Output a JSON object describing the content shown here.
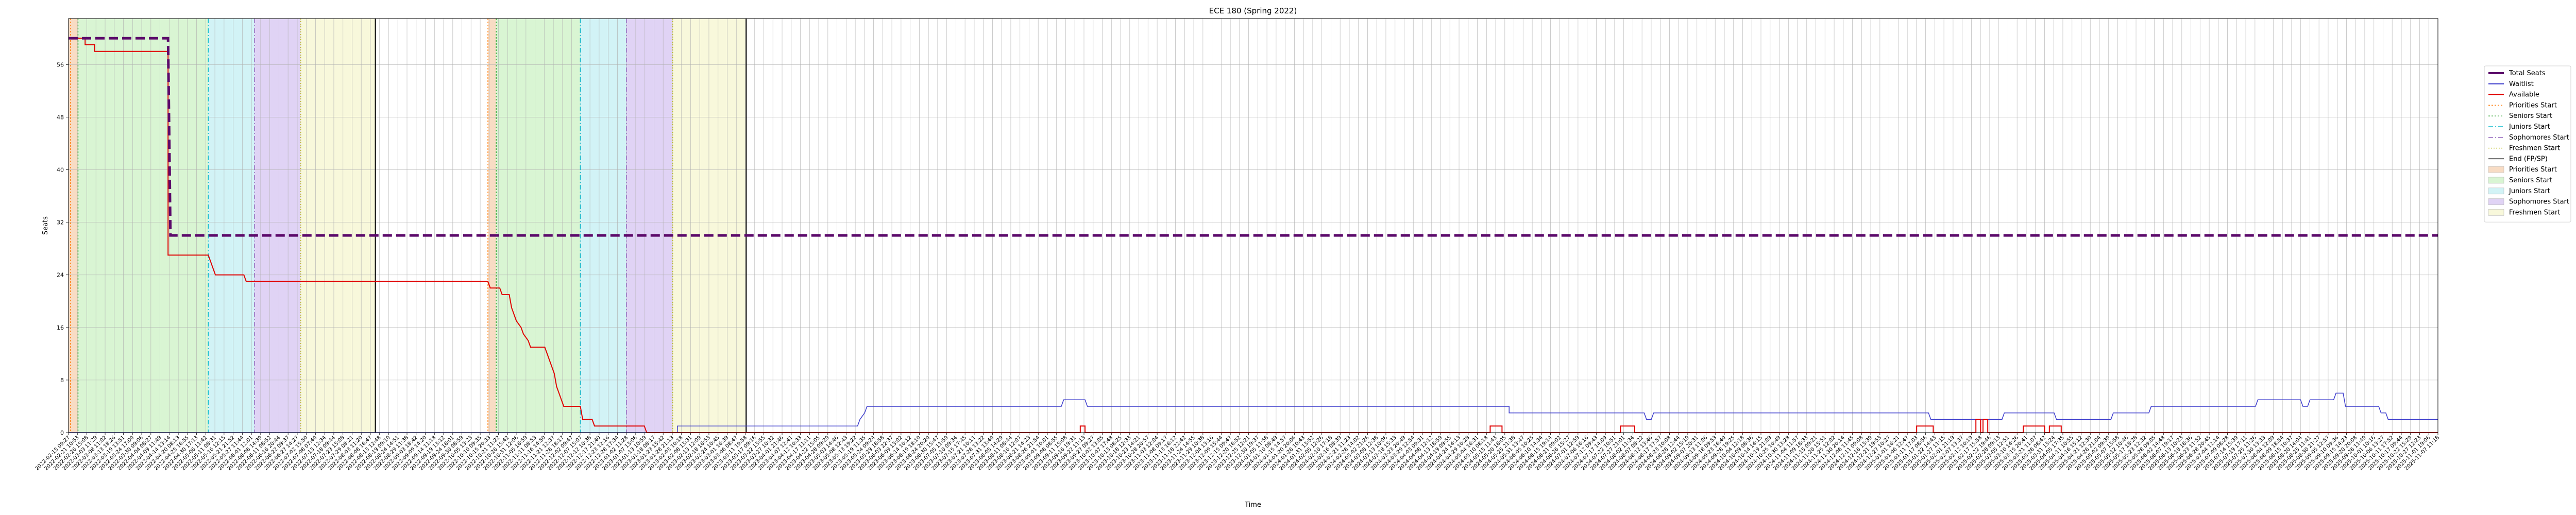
{
  "chart_data": {
    "type": "line",
    "title": "ECE 180 (Spring 2022)",
    "xlabel": "Time",
    "ylabel": "Seats",
    "y_ticks": [
      0,
      8,
      16,
      24,
      32,
      40,
      48,
      56
    ],
    "ylim": [
      0,
      63
    ],
    "xlim": [
      0,
      1000
    ],
    "grid": true,
    "legend_position": "outside-right",
    "x_tick_count": 260,
    "x_tick_labels": [
      "2022-02-15 09:27",
      "2022-02-21 10:53",
      "2022-02-26 15:08",
      "2022-03-03 11:29",
      "2022-03-08 11:02",
      "2022-03-13 18:26",
      "2022-03-19 13:51",
      "2022-03-24 17:00",
      "2022-03-30 09:06",
      "2022-04-04 08:27",
      "2022-04-09 11:49",
      "2022-04-14 13:14",
      "2022-04-20 08:13",
      "2022-04-25 16:55",
      "2022-04-30 17:13",
      "2022-05-06 11:42",
      "2022-05-11 08:31",
      "2022-05-16 12:15",
      "2022-05-21 21:52",
      "2022-05-27 11:44",
      "2022-06-01 12:01",
      "2022-06-06 14:39",
      "2022-06-11 08:52",
      "2022-06-16 20:44",
      "2022-06-22 09:37",
      "2022-06-27 14:27",
      "2022-07-02 15:50",
      "2022-07-08 07:40",
      "2022-07-13 12:34",
      "2022-07-18 09:44",
      "2022-07-23 15:08",
      "2022-07-29 08:21",
      "2022-08-03 11:20",
      "2022-08-08 16:47",
      "2022-08-13 12:48",
      "2022-08-19 09:10",
      "2022-08-24 14:51",
      "2022-08-29 11:38",
      "2022-09-03 18:42",
      "2022-09-09 14:20",
      "2022-09-14 11:18",
      "2022-09-19 13:12",
      "2022-09-24 16:01",
      "2022-09-30 08:59",
      "2022-10-05 13:23",
      "2022-10-10 09:35",
      "2022-10-15 20:33",
      "2022-10-21 11:22",
      "2022-10-26 15:42",
      "2022-10-31 12:06",
      "2022-11-05 16:59",
      "2022-11-11 08:53",
      "2022-11-16 14:50",
      "2022-11-21 12:37",
      "2022-11-26 18:17",
      "2022-12-02 09:47",
      "2022-12-07 15:07",
      "2022-12-12 10:38",
      "2022-12-17 21:40",
      "2022-12-23 12:16",
      "2022-12-28 17:34",
      "2023-01-02 11:28",
      "2023-01-07 13:06",
      "2023-01-13 10:59",
      "2023-01-18 08:17",
      "2023-01-23 15:42",
      "2023-01-28 21:13",
      "2023-02-03 10:18",
      "2023-02-08 13:31",
      "2023-02-13 12:09",
      "2023-02-18 16:53",
      "2023-02-24 10:45",
      "2023-03-01 16:39",
      "2023-03-06 08:47",
      "2023-03-11 19:58",
      "2023-03-17 09:16",
      "2023-03-22 13:55",
      "2023-03-27 10:32",
      "2023-04-01 21:46",
      "2023-04-07 12:41",
      "2023-04-12 10:33",
      "2023-04-17 11:11",
      "2023-04-22 15:05",
      "2023-04-28 09:29",
      "2023-05-03 14:46",
      "2023-05-08 12:43",
      "2023-05-13 19:22",
      "2023-05-19 11:35",
      "2023-05-24 09:24",
      "2023-05-29 16:58",
      "2023-06-03 22:37",
      "2023-06-09 13:02",
      "2023-06-14 10:12",
      "2023-06-19 18:10",
      "2023-06-24 20:20",
      "2023-06-30 15:47",
      "2023-07-05 11:59",
      "2023-07-10 09:34",
      "2023-07-15 17:45",
      "2023-07-21 10:11",
      "2023-07-26 13:22",
      "2023-07-31 13:40",
      "2023-08-05 14:29",
      "2023-08-11 08:44",
      "2023-08-16 12:07",
      "2023-08-21 14:23",
      "2023-08-26 21:54",
      "2023-09-01 10:01",
      "2023-09-06 08:55",
      "2023-09-11 15:08",
      "2023-09-16 19:31",
      "2023-09-22 11:13",
      "2023-09-27 09:27",
      "2023-10-02 13:05",
      "2023-10-07 17:48",
      "2023-10-13 08:25",
      "2023-10-18 12:33",
      "2023-10-23 14:21",
      "2023-10-28 20:57",
      "2023-11-03 12:04",
      "2023-11-08 09:17",
      "2023-11-13 16:12",
      "2023-11-18 22:42",
      "2023-11-24 14:55",
      "2023-11-29 10:38",
      "2023-12-04 13:16",
      "2023-12-09 15:44",
      "2023-12-15 09:47",
      "2023-12-20 16:52",
      "2023-12-25 12:21",
      "2023-12-30 19:37",
      "2024-01-05 11:58",
      "2024-01-10 08:49",
      "2024-01-15 14:57",
      "2024-01-20 20:06",
      "2024-01-26 10:43",
      "2024-01-31 13:52",
      "2024-02-05 12:26",
      "2024-02-10 17:18",
      "2024-02-16 08:39",
      "2024-02-21 11:23",
      "2024-02-26 14:02",
      "2024-03-02 21:26",
      "2024-03-08 12:38",
      "2024-03-13 10:06",
      "2024-03-18 15:33",
      "2024-03-23 20:49",
      "2024-03-29 12:54",
      "2024-04-03 09:31",
      "2024-04-08 12:12",
      "2024-04-13 18:59",
      "2024-04-19 09:55",
      "2024-04-24 14:13",
      "2024-04-29 10:28",
      "2024-05-04 16:31",
      "2024-05-10 08:18",
      "2024-05-15 11:43",
      "2024-05-20 16:05",
      "2024-05-25 21:38",
      "2024-05-31 13:47",
      "2024-06-05 10:25",
      "2024-06-10 14:34",
      "2024-06-15 19:14",
      "2024-06-21 09:02",
      "2024-06-26 15:27",
      "2024-07-01 12:59",
      "2024-07-06 16:16",
      "2024-07-12 09:43",
      "2024-07-17 14:09",
      "2024-07-22 10:51",
      "2024-07-27 21:01",
      "2024-08-02 11:34",
      "2024-08-07 08:22",
      "2024-08-12 13:46",
      "2024-08-17 17:57",
      "2024-08-23 10:08",
      "2024-08-28 12:44",
      "2024-09-02 15:19",
      "2024-09-07 20:31",
      "2024-09-13 11:06",
      "2024-09-18 09:53",
      "2024-09-23 16:40",
      "2024-09-28 19:25",
      "2024-10-04 12:18",
      "2024-10-09 08:36",
      "2024-10-14 14:15",
      "2024-10-19 21:09",
      "2024-10-25 10:49",
      "2024-10-30 13:28",
      "2024-11-04 11:57",
      "2024-11-09 18:33",
      "2024-11-15 09:21",
      "2024-11-20 15:51",
      "2024-11-25 12:02",
      "2024-11-30 20:14",
      "2024-12-06 11:45",
      "2024-12-11 09:08",
      "2024-12-16 13:39",
      "2024-12-21 19:53",
      "2024-12-27 10:27",
      "2025-01-01 16:21",
      "2025-01-06 12:47",
      "2025-01-11 17:03",
      "2025-01-17 08:56",
      "2025-01-22 14:43",
      "2025-01-27 11:15",
      "2025-02-01 21:19",
      "2025-02-07 13:37",
      "2025-02-12 10:19",
      "2025-02-17 15:58",
      "2025-02-22 19:46",
      "2025-02-28 09:13",
      "2025-03-05 12:51",
      "2025-03-10 14:26",
      "2025-03-15 20:41",
      "2025-03-21 11:07",
      "2025-03-26 08:42",
      "2025-03-31 13:24",
      "2025-04-05 17:35",
      "2025-04-11 10:55",
      "2025-04-16 15:12",
      "2025-04-21 12:30",
      "2025-04-26 21:04",
      "2025-05-02 09:39",
      "2025-05-07 13:58",
      "2025-05-12 10:46",
      "2025-05-17 18:28",
      "2025-05-23 12:32",
      "2025-05-28 09:05",
      "2025-06-02 14:48",
      "2025-06-07 19:17",
      "2025-06-13 10:23",
      "2025-06-18 16:36",
      "2025-06-23 11:52",
      "2025-06-28 20:45",
      "2025-07-04 12:14",
      "2025-07-09 08:28",
      "2025-07-14 15:39",
      "2025-07-19 17:11",
      "2025-07-25 11:26",
      "2025-07-30 13:33",
      "2025-08-04 12:09",
      "2025-08-09 18:54",
      "2025-08-15 10:37",
      "2025-08-20 14:04",
      "2025-08-25 11:41",
      "2025-08-30 21:27",
      "2025-09-05 12:57",
      "2025-09-10 09:36",
      "2025-09-15 14:23",
      "2025-09-20 20:08",
      "2025-09-26 11:49",
      "2025-10-01 10:16",
      "2025-10-06 13:27",
      "2025-10-11 17:52",
      "2025-10-17 09:44",
      "2025-10-22 15:29",
      "2025-10-27 12:23",
      "2025-11-01 19:06",
      "2025-11-07 11:18"
    ],
    "phase_lines": [
      {
        "name": "Priorities Start",
        "x": 0.8,
        "color": "#ff7f0e",
        "dash": "3,3"
      },
      {
        "name": "Seniors Start",
        "x": 4.0,
        "color": "#2ca02c",
        "dash": "3,3"
      },
      {
        "name": "Juniors Start",
        "x": 59.0,
        "color": "#17becf",
        "dash": "9,4,2,4"
      },
      {
        "name": "Sophomores Start",
        "x": 78.5,
        "color": "#9467bd",
        "dash": "9,4,2,4"
      },
      {
        "name": "Freshmen Start",
        "x": 98.0,
        "color": "#bcbd22",
        "dash": "2,3"
      },
      {
        "name": "End (FP/SP)",
        "x": 129.5,
        "color": "#000000",
        "dash": ""
      },
      {
        "name": "Priorities Start",
        "x": 177.0,
        "color": "#ff7f0e",
        "dash": "3,3"
      },
      {
        "name": "Seniors Start",
        "x": 180.5,
        "color": "#2ca02c",
        "dash": "3,3"
      },
      {
        "name": "Juniors Start",
        "x": 216.0,
        "color": "#17becf",
        "dash": "9,4,2,4"
      },
      {
        "name": "Sophomores Start",
        "x": 235.5,
        "color": "#9467bd",
        "dash": "9,4,2,4"
      },
      {
        "name": "Freshmen Start",
        "x": 255.0,
        "color": "#bcbd22",
        "dash": "2,3"
      },
      {
        "name": "End (FP/SP)",
        "x": 286.0,
        "color": "#000000",
        "dash": ""
      }
    ],
    "phase_spans": [
      {
        "name": "Priorities Start",
        "x0": 0.0,
        "x1": 4.0,
        "color": "#f8dcc4"
      },
      {
        "name": "Seniors Start",
        "x0": 4.0,
        "x1": 59.0,
        "color": "#d9f5d3"
      },
      {
        "name": "Juniors Start",
        "x0": 59.0,
        "x1": 78.5,
        "color": "#d2f3f6"
      },
      {
        "name": "Sophomores Start",
        "x0": 78.5,
        "x1": 98.0,
        "color": "#e0d3f5"
      },
      {
        "name": "Freshmen Start",
        "x0": 98.0,
        "x1": 129.5,
        "color": "#f8f8db"
      },
      {
        "name": "Priorities Start",
        "x0": 177.0,
        "x1": 180.5,
        "color": "#f8dcc4"
      },
      {
        "name": "Seniors Start",
        "x0": 180.5,
        "x1": 216.0,
        "color": "#d9f5d3"
      },
      {
        "name": "Juniors Start",
        "x0": 216.0,
        "x1": 235.5,
        "color": "#d2f3f6"
      },
      {
        "name": "Sophomores Start",
        "x0": 235.5,
        "x1": 255.0,
        "color": "#e0d3f5"
      },
      {
        "name": "Freshmen Start",
        "x0": 255.0,
        "x1": 286.0,
        "color": "#f8f8db"
      }
    ],
    "series": [
      {
        "name": "Total Seats",
        "color": "#5c0a6b",
        "width": 5,
        "dash": "18,8",
        "points": [
          [
            0,
            60
          ],
          [
            42,
            60
          ],
          [
            43,
            30
          ],
          [
            1000,
            30
          ]
        ]
      },
      {
        "name": "Waitlist",
        "color": "#3b3bcc",
        "width": 1.5,
        "dash": "",
        "points": [
          [
            0,
            0
          ],
          [
            257,
            0
          ],
          [
            257,
            1
          ],
          [
            333,
            1
          ],
          [
            334,
            2
          ],
          [
            336,
            3
          ],
          [
            337,
            4
          ],
          [
            419,
            4
          ],
          [
            420,
            5
          ],
          [
            429,
            5
          ],
          [
            430,
            4
          ],
          [
            608,
            4
          ],
          [
            608,
            3
          ],
          [
            665,
            3
          ],
          [
            666,
            2
          ],
          [
            668,
            2
          ],
          [
            669,
            3
          ],
          [
            785,
            3
          ],
          [
            786,
            2
          ],
          [
            816,
            2
          ],
          [
            817,
            3
          ],
          [
            838,
            3
          ],
          [
            839,
            2
          ],
          [
            862,
            2
          ],
          [
            863,
            3
          ],
          [
            878,
            3
          ],
          [
            879,
            4
          ],
          [
            923,
            4
          ],
          [
            924,
            5
          ],
          [
            942,
            5
          ],
          [
            943,
            4
          ],
          [
            945,
            4
          ],
          [
            946,
            5
          ],
          [
            956,
            5
          ],
          [
            957,
            6
          ],
          [
            960,
            6
          ],
          [
            961,
            4
          ],
          [
            975,
            4
          ],
          [
            976,
            3
          ],
          [
            978,
            3
          ],
          [
            979,
            2
          ],
          [
            1000,
            2
          ]
        ]
      },
      {
        "name": "Available",
        "color": "#e00000",
        "width": 2,
        "dash": "",
        "points": [
          [
            0,
            60
          ],
          [
            7,
            60
          ],
          [
            7,
            59
          ],
          [
            11,
            59
          ],
          [
            11,
            58
          ],
          [
            42,
            58
          ],
          [
            42,
            27
          ],
          [
            59,
            27
          ],
          [
            60,
            26
          ],
          [
            61,
            25
          ],
          [
            62,
            24
          ],
          [
            74,
            24
          ],
          [
            75,
            23
          ],
          [
            177,
            23
          ],
          [
            178,
            22
          ],
          [
            182,
            22
          ],
          [
            183,
            21
          ],
          [
            186,
            21
          ],
          [
            187,
            19
          ],
          [
            189,
            17
          ],
          [
            191,
            16
          ],
          [
            192,
            15
          ],
          [
            194,
            14
          ],
          [
            195,
            13
          ],
          [
            201,
            13
          ],
          [
            202,
            12
          ],
          [
            203,
            11
          ],
          [
            204,
            10
          ],
          [
            205,
            9
          ],
          [
            206,
            7
          ],
          [
            207,
            6
          ],
          [
            208,
            5
          ],
          [
            209,
            4
          ],
          [
            216,
            4
          ],
          [
            217,
            2
          ],
          [
            221,
            2
          ],
          [
            222,
            1
          ],
          [
            243,
            1
          ],
          [
            244,
            0
          ],
          [
            427,
            0
          ],
          [
            427,
            1
          ],
          [
            429,
            1
          ],
          [
            429,
            0
          ],
          [
            600,
            0
          ],
          [
            600,
            1
          ],
          [
            605,
            1
          ],
          [
            605,
            0
          ],
          [
            655,
            0
          ],
          [
            655,
            1
          ],
          [
            661,
            1
          ],
          [
            661,
            0
          ],
          [
            780,
            0
          ],
          [
            780,
            1
          ],
          [
            787,
            1
          ],
          [
            787,
            0
          ],
          [
            805,
            0
          ],
          [
            805,
            2
          ],
          [
            807,
            2
          ],
          [
            807,
            0
          ],
          [
            808,
            0
          ],
          [
            808,
            2
          ],
          [
            810,
            2
          ],
          [
            810,
            0
          ],
          [
            825,
            0
          ],
          [
            825,
            1
          ],
          [
            834,
            1
          ],
          [
            834,
            0
          ],
          [
            836,
            0
          ],
          [
            836,
            1
          ],
          [
            841,
            1
          ],
          [
            841,
            0
          ],
          [
            1000,
            0
          ]
        ]
      }
    ],
    "legend_lines": [
      {
        "label": "Total Seats",
        "color": "#5c0a6b",
        "dash": "",
        "width": 4
      },
      {
        "label": "Waitlist",
        "color": "#3b3bcc",
        "dash": "",
        "width": 2
      },
      {
        "label": "Available",
        "color": "#e00000",
        "dash": "",
        "width": 2
      },
      {
        "label": "Priorities Start",
        "color": "#ff7f0e",
        "dash": "3,3",
        "width": 1.5
      },
      {
        "label": "Seniors Start",
        "color": "#2ca02c",
        "dash": "3,3",
        "width": 1.5
      },
      {
        "label": "Juniors Start",
        "color": "#17becf",
        "dash": "9,4,2,4",
        "width": 1.5
      },
      {
        "label": "Sophomores Start",
        "color": "#9467bd",
        "dash": "9,4,2,4",
        "width": 1.5
      },
      {
        "label": "Freshmen Start",
        "color": "#bcbd22",
        "dash": "2,3",
        "width": 1.5
      },
      {
        "label": "End (FP/SP)",
        "color": "#000000",
        "dash": "",
        "width": 1.5
      }
    ],
    "legend_patches": [
      {
        "label": "Priorities Start",
        "color": "#f8dcc4"
      },
      {
        "label": "Seniors Start",
        "color": "#d9f5d3"
      },
      {
        "label": "Juniors Start",
        "color": "#d2f3f6"
      },
      {
        "label": "Sophomores Start",
        "color": "#e0d3f5"
      },
      {
        "label": "Freshmen Start",
        "color": "#f8f8db"
      }
    ]
  }
}
